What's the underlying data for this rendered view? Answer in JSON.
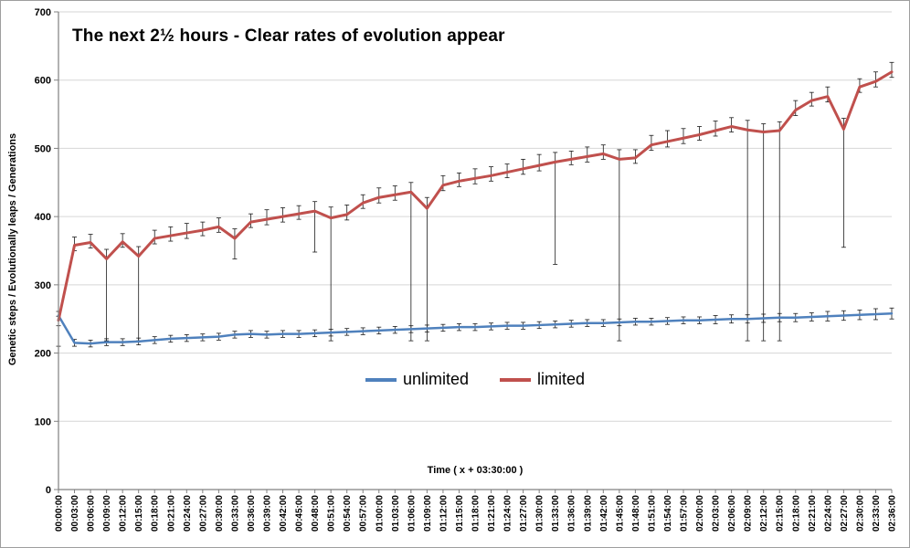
{
  "chart_data": {
    "type": "line",
    "title": "The next 2½ hours  - Clear  rates of evolution appear",
    "xlabel": "Time  ( x + 03:30:00 )",
    "ylabel": "Genetic steps / Evolutionally leaps / Generations",
    "ylim": [
      0,
      700
    ],
    "y_ticks": [
      0,
      100,
      200,
      300,
      400,
      500,
      600,
      700
    ],
    "grid": true,
    "legend_position": "center-inside",
    "error_bar_color": "#1a1a1a",
    "gridline_color": "#d6d6d6",
    "axis_color": "#808080",
    "x_labels": [
      "00:00:00",
      "00:03:00",
      "00:06:00",
      "00:09:00",
      "00:12:00",
      "00:15:00",
      "00:18:00",
      "00:21:00",
      "00:24:00",
      "00:27:00",
      "00:30:00",
      "00:33:00",
      "00:36:00",
      "00:39:00",
      "00:42:00",
      "00:45:00",
      "00:48:00",
      "00:51:00",
      "00:54:00",
      "00:57:00",
      "01:00:00",
      "01:03:00",
      "01:06:00",
      "01:09:00",
      "01:12:00",
      "01:15:00",
      "01:18:00",
      "01:21:00",
      "01:24:00",
      "01:27:00",
      "01:30:00",
      "01:33:00",
      "01:36:00",
      "01:39:00",
      "01:42:00",
      "01:45:00",
      "01:48:00",
      "01:51:00",
      "01:54:00",
      "01:57:00",
      "02:00:00",
      "02:03:00",
      "02:06:00",
      "02:09:00",
      "02:12:00",
      "02:15:00",
      "02:18:00",
      "02:21:00",
      "02:24:00",
      "02:27:00",
      "02:30:00",
      "02:33:00",
      "02:36:00"
    ],
    "series": [
      {
        "name": "unlimited",
        "color": "#4f81bd",
        "values": [
          255,
          215,
          214,
          216,
          216,
          217,
          219,
          221,
          222,
          223,
          224,
          227,
          228,
          227,
          228,
          228,
          229,
          230,
          231,
          232,
          233,
          234,
          235,
          236,
          237,
          238,
          238,
          239,
          240,
          240,
          241,
          242,
          243,
          244,
          244,
          245,
          246,
          246,
          247,
          248,
          248,
          249,
          250,
          250,
          251,
          252,
          252,
          253,
          254,
          255,
          256,
          257,
          258
        ],
        "err_up": [
          6,
          5,
          5,
          5,
          5,
          5,
          5,
          5,
          5,
          5,
          5,
          5,
          5,
          5,
          5,
          5,
          5,
          5,
          5,
          5,
          5,
          5,
          5,
          5,
          5,
          5,
          5,
          5,
          5,
          5,
          5,
          5,
          5,
          5,
          5,
          5,
          5,
          5,
          5,
          5,
          5,
          6,
          6,
          6,
          6,
          6,
          6,
          6,
          7,
          7,
          7,
          8,
          8
        ],
        "err_down": [
          45,
          5,
          5,
          5,
          5,
          5,
          5,
          5,
          5,
          5,
          5,
          5,
          5,
          5,
          5,
          5,
          5,
          5,
          5,
          5,
          5,
          5,
          5,
          5,
          5,
          5,
          5,
          5,
          5,
          5,
          5,
          5,
          5,
          5,
          5,
          5,
          5,
          5,
          5,
          5,
          5,
          6,
          6,
          6,
          6,
          6,
          6,
          6,
          7,
          7,
          7,
          8,
          8
        ]
      },
      {
        "name": "limited",
        "color": "#c0504d",
        "values": [
          248,
          358,
          362,
          338,
          363,
          342,
          368,
          372,
          376,
          380,
          385,
          368,
          392,
          396,
          400,
          404,
          408,
          398,
          403,
          420,
          428,
          432,
          436,
          412,
          446,
          452,
          456,
          460,
          465,
          470,
          475,
          480,
          484,
          488,
          492,
          484,
          486,
          505,
          510,
          515,
          520,
          526,
          532,
          527,
          524,
          526,
          556,
          570,
          576,
          528,
          590,
          598,
          612
        ],
        "err_up": [
          6,
          12,
          12,
          14,
          12,
          14,
          12,
          13,
          14,
          12,
          13,
          14,
          12,
          14,
          13,
          12,
          14,
          16,
          14,
          12,
          14,
          13,
          14,
          16,
          14,
          12,
          14,
          13,
          12,
          14,
          16,
          14,
          12,
          14,
          13,
          14,
          12,
          14,
          16,
          14,
          12,
          14,
          13,
          14,
          12,
          13,
          14,
          12,
          14,
          16,
          12,
          14,
          14
        ],
        "err_down": [
          8,
          8,
          8,
          120,
          8,
          124,
          8,
          8,
          8,
          8,
          8,
          30,
          8,
          8,
          8,
          8,
          60,
          180,
          8,
          8,
          8,
          8,
          218,
          194,
          8,
          8,
          8,
          8,
          8,
          8,
          8,
          150,
          8,
          8,
          8,
          266,
          8,
          8,
          8,
          8,
          8,
          8,
          8,
          309,
          306,
          308,
          8,
          8,
          8,
          173,
          8,
          8,
          8
        ]
      }
    ]
  }
}
